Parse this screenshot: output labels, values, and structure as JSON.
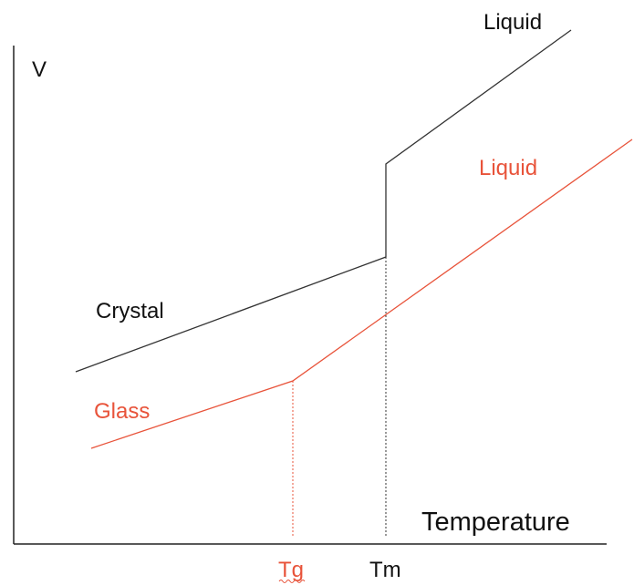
{
  "y_axis_label": "V",
  "x_axis_label": "Temperature",
  "curves": {
    "liquid_upper": "Liquid",
    "liquid_lower": "Liquid",
    "crystal": "Crystal",
    "glass": "Glass"
  },
  "markers": {
    "tg": "Tg",
    "tm": "Tm"
  }
}
